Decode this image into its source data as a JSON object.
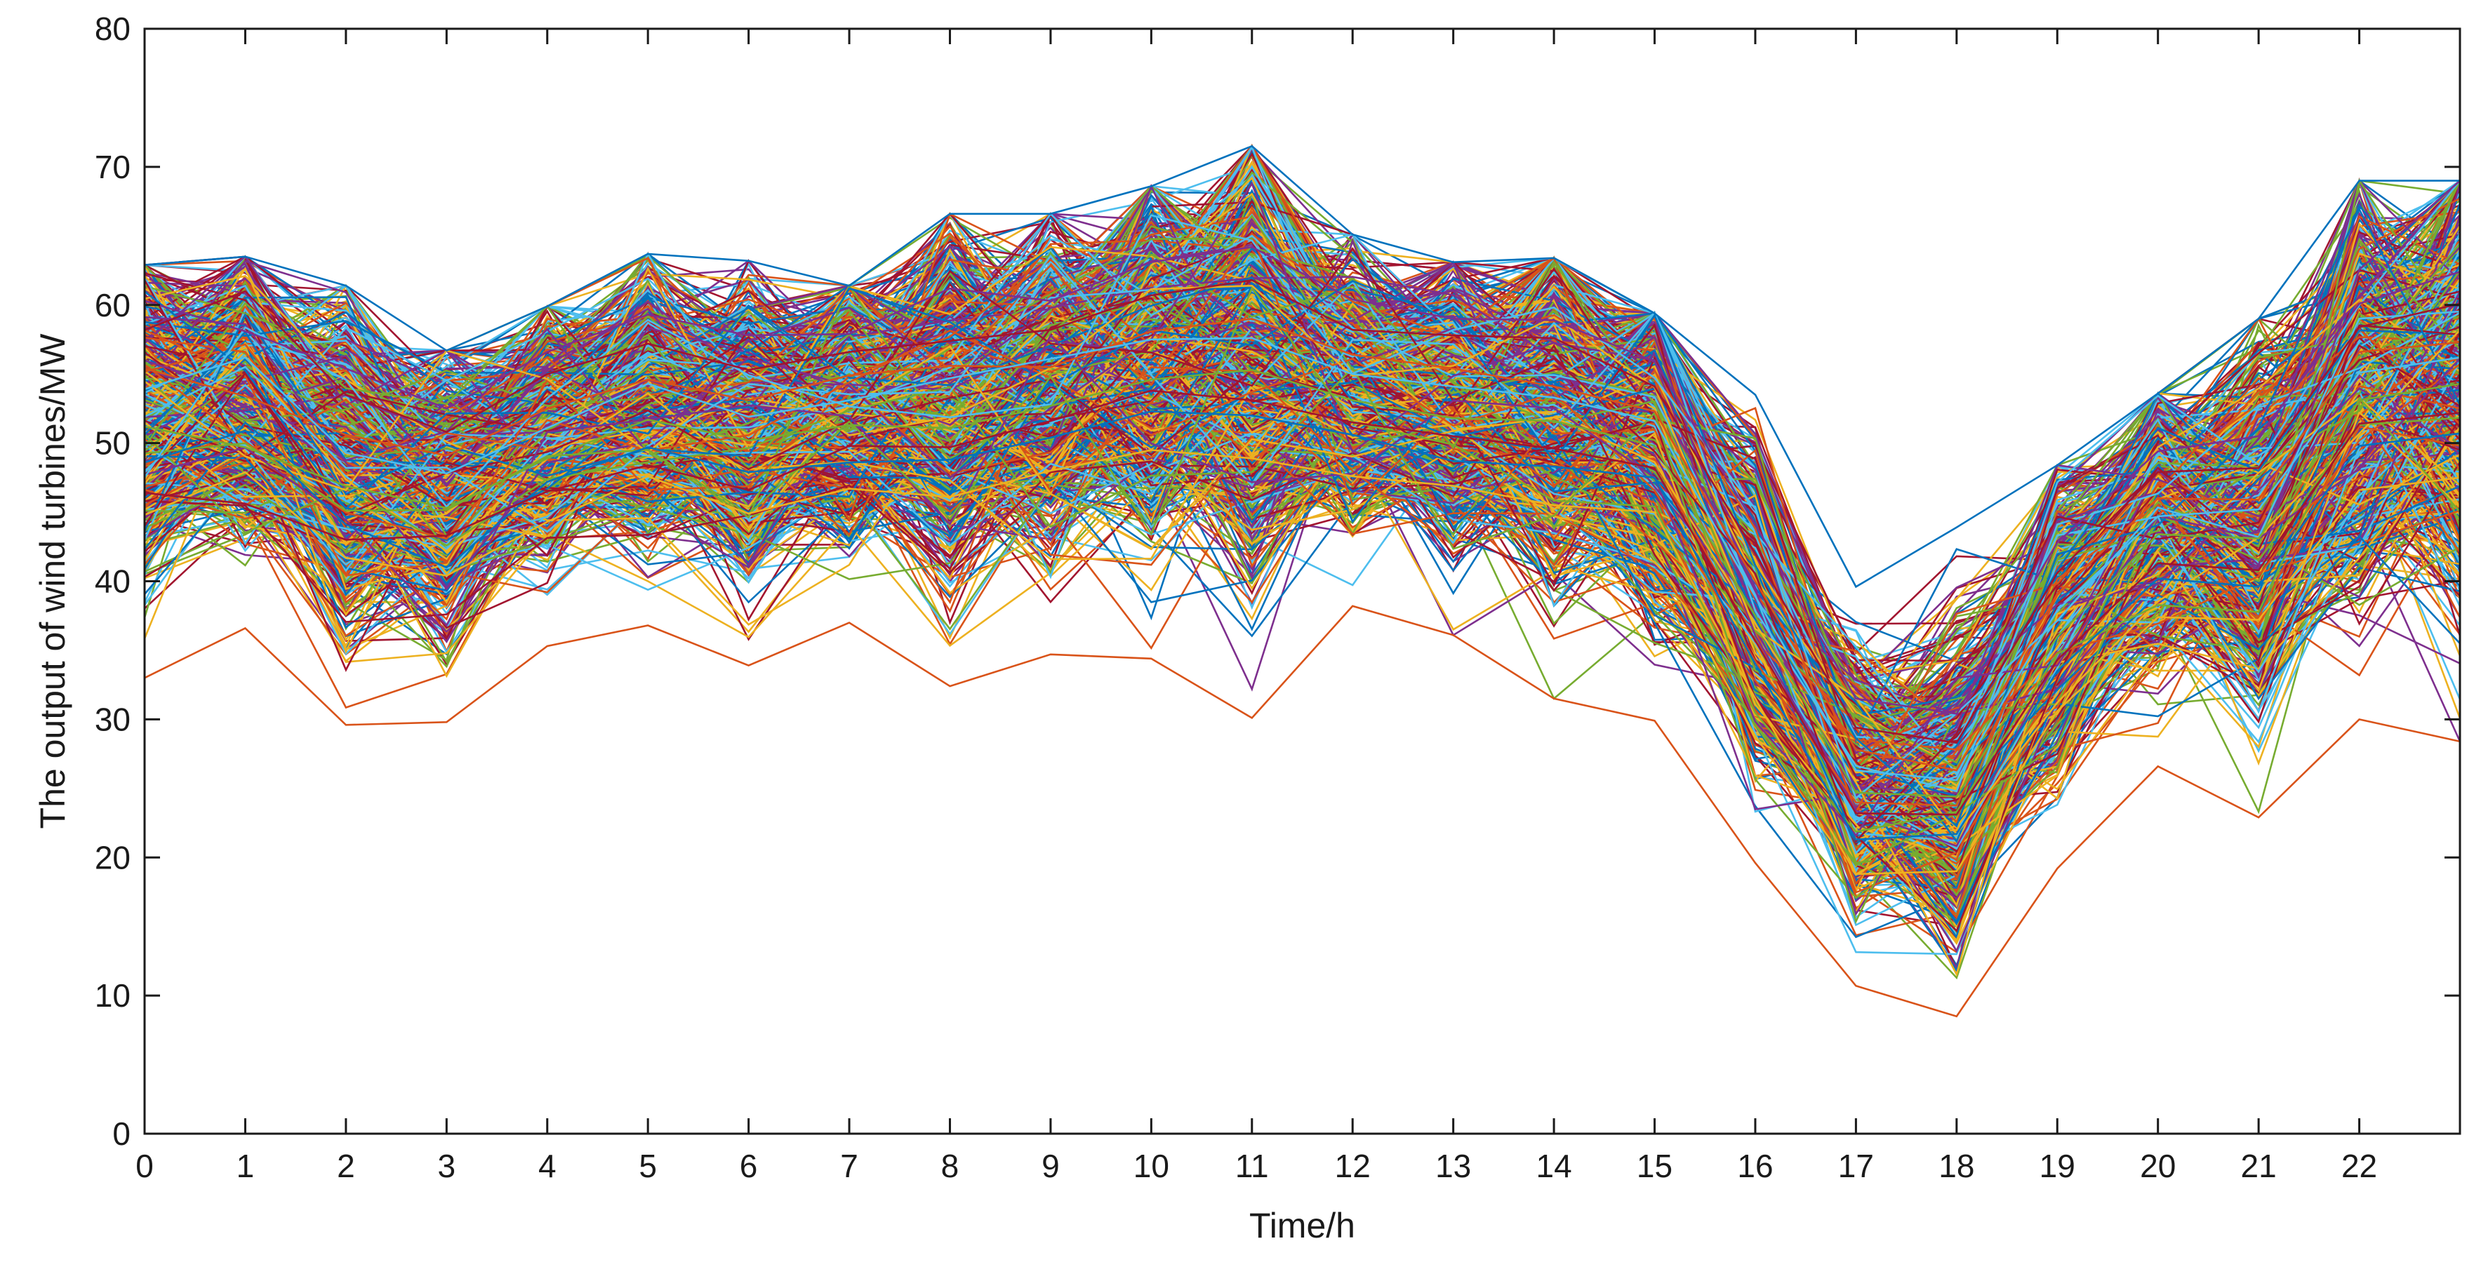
{
  "chart_data": {
    "type": "line",
    "title": "",
    "xlabel": "Time/h",
    "ylabel": "The output of wind turbines/MW",
    "xlim": [
      0,
      23
    ],
    "ylim": [
      0,
      80
    ],
    "x_ticks": [
      0,
      1,
      2,
      3,
      4,
      5,
      6,
      7,
      8,
      9,
      10,
      11,
      12,
      13,
      14,
      15,
      16,
      17,
      18,
      19,
      20,
      21,
      22
    ],
    "y_ticks": [
      0,
      10,
      20,
      30,
      40,
      50,
      60,
      70,
      80
    ],
    "grid": false,
    "legend": "none",
    "x": [
      0,
      1,
      2,
      3,
      4,
      5,
      6,
      7,
      8,
      9,
      10,
      11,
      12,
      13,
      14,
      15,
      16,
      17,
      18,
      19,
      20,
      21,
      22,
      23
    ],
    "scenario_count": 1000,
    "envelope": {
      "max": [
        62.9,
        63.5,
        61.4,
        56.7,
        59.9,
        63.7,
        63.2,
        61.4,
        66.6,
        66.6,
        68.6,
        71.5,
        65.1,
        63.1,
        63.4,
        59.4,
        53.5,
        39.6,
        43.9,
        48.4,
        53.6,
        59.0,
        69.0,
        69.0
      ],
      "mean": [
        52.0,
        53.0,
        48.5,
        46.5,
        50.5,
        53.0,
        51.0,
        52.5,
        53.0,
        54.0,
        56.0,
        56.5,
        54.0,
        53.0,
        52.5,
        50.5,
        38.0,
        25.5,
        25.0,
        37.0,
        44.0,
        44.0,
        54.0,
        55.0
      ],
      "min": [
        33.0,
        36.6,
        29.6,
        29.8,
        35.3,
        36.8,
        33.9,
        37.0,
        32.4,
        34.7,
        34.4,
        30.1,
        38.2,
        36.1,
        31.5,
        29.9,
        19.6,
        10.7,
        8.5,
        19.2,
        26.6,
        22.9,
        30.0,
        28.4
      ]
    },
    "series": [
      {
        "values": [
          58.2,
          61.0,
          53.5,
          50.8,
          55.0,
          57.2,
          55.3,
          56.6,
          57.4,
          58.2,
          60.7,
          61.8,
          58.2,
          57.8,
          57.6,
          54.1,
          42.0,
          29.4,
          28.3,
          40.6,
          47.9,
          48.2,
          58.4,
          60.1
        ]
      },
      {
        "values": [
          48.6,
          50.9,
          44.1,
          41.0,
          47.2,
          49.7,
          47.9,
          48.6,
          48.8,
          50.4,
          52.3,
          52.0,
          50.6,
          48.7,
          48.3,
          47.5,
          34.0,
          21.3,
          21.7,
          33.5,
          40.2,
          39.6,
          49.8,
          50.7
        ]
      },
      {
        "values": [
          55.4,
          53.4,
          50.6,
          49.1,
          52.5,
          54.6,
          53.1,
          54.9,
          55.6,
          55.5,
          58.1,
          59.0,
          56.4,
          55.4,
          54.1,
          52.3,
          40.0,
          27.8,
          26.3,
          39.1,
          46.0,
          45.9,
          56.6,
          57.3
        ]
      },
      {
        "values": [
          44.8,
          47.9,
          41.7,
          40.4,
          44.3,
          47.6,
          44.9,
          46.7,
          46.1,
          48.0,
          49.5,
          48.9,
          47.6,
          46.9,
          45.5,
          45.0,
          31.5,
          18.8,
          19.0,
          30.6,
          37.4,
          37.2,
          46.6,
          47.5
        ]
      },
      {
        "values": [
          60.3,
          58.1,
          55.4,
          52.5,
          56.6,
          59.3,
          57.8,
          57.9,
          61.2,
          60.3,
          63.1,
          64.2,
          60.4,
          59.0,
          58.9,
          55.9,
          44.1,
          31.5,
          30.4,
          42.8,
          49.4,
          50.5,
          60.1,
          62.4
        ]
      },
      {
        "values": [
          51.2,
          49.7,
          46.9,
          45.3,
          48.9,
          51.7,
          50.2,
          51.3,
          51.1,
          52.7,
          54.6,
          55.3,
          53.1,
          51.8,
          51.6,
          49.8,
          37.5,
          24.7,
          24.4,
          36.0,
          43.4,
          43.1,
          53.1,
          54.3
        ]
      },
      {
        "values": [
          53.9,
          56.2,
          49.3,
          47.8,
          51.1,
          54.3,
          51.9,
          53.1,
          54.7,
          56.1,
          57.5,
          57.6,
          55.0,
          54.1,
          53.3,
          51.6,
          38.9,
          26.3,
          25.6,
          37.9,
          44.7,
          45.2,
          55.1,
          56.2
        ]
      },
      {
        "values": [
          46.4,
          45.6,
          43.0,
          43.3,
          46.5,
          48.4,
          46.6,
          49.8,
          49.7,
          51.6,
          53.8,
          53.1,
          51.5,
          50.5,
          49.6,
          48.2,
          35.7,
          23.2,
          23.1,
          34.3,
          41.3,
          40.8,
          51.4,
          52.2
        ]
      }
    ]
  }
}
